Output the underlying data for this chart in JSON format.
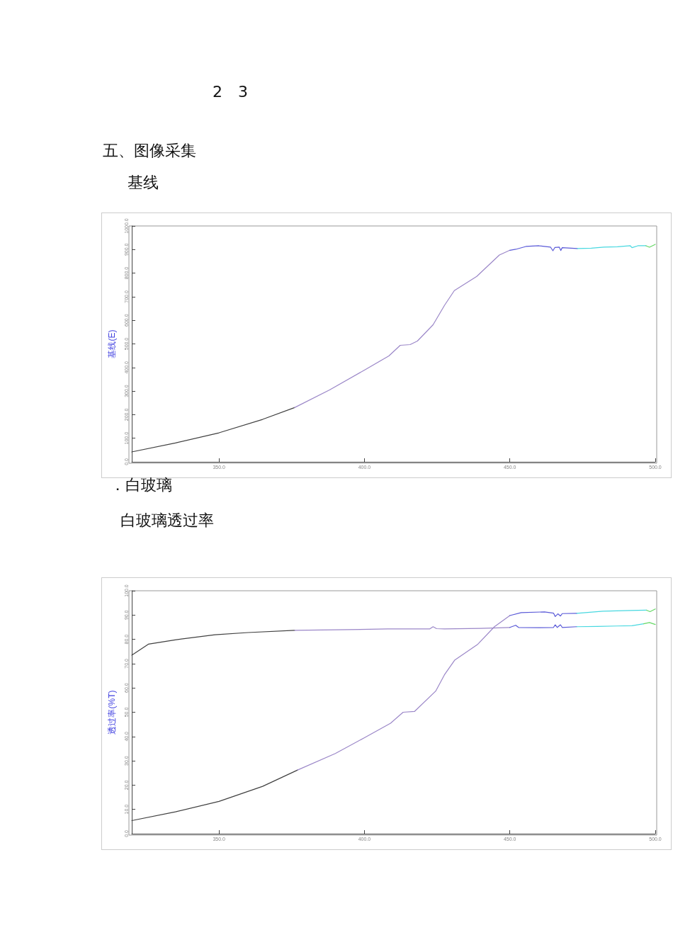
{
  "chart_data": [
    {
      "type": "line",
      "title": "基线",
      "annotations": [
        "2　3",
        "五、图像采集"
      ],
      "ylabel": "基线(E)",
      "xlim": [
        320,
        500
      ],
      "ylim": [
        0,
        1000
      ],
      "xticks": [
        {
          "value": 350,
          "label": "350.0"
        },
        {
          "value": 400,
          "label": "400.0"
        },
        {
          "value": 450,
          "label": "450.0"
        },
        {
          "value": 500,
          "label": "500.0"
        }
      ],
      "yticks": [
        {
          "value": 0,
          "label": "0.0"
        },
        {
          "value": 100,
          "label": "100.0"
        },
        {
          "value": 200,
          "label": "200.0"
        },
        {
          "value": 300,
          "label": "300.0"
        },
        {
          "value": 400,
          "label": "400.0"
        },
        {
          "value": 500,
          "label": "500.0"
        },
        {
          "value": 600,
          "label": "600.0"
        },
        {
          "value": 700,
          "label": "700.0"
        },
        {
          "value": 800,
          "label": "800.0"
        },
        {
          "value": 900,
          "label": "900.0"
        },
        {
          "value": 1000,
          "label": "1000.0"
        }
      ],
      "grid": false,
      "marker": "none",
      "line_style": "solid",
      "series": [
        {
          "color": "#404040",
          "x": [
            320,
            335,
            350,
            365,
            376
          ],
          "values": [
            42,
            80,
            123,
            180,
            230
          ]
        },
        {
          "color": "#9b87c8",
          "x": [
            376,
            388,
            400,
            408.4,
            412.3,
            415.7,
            418.2,
            423.6,
            427.5,
            430.9,
            438.6,
            446.4,
            450
          ],
          "values": [
            230,
            305,
            389,
            449,
            494,
            497,
            512,
            581,
            663,
            726,
            786,
            877,
            897
          ]
        },
        {
          "color": "#5a5ad8",
          "x": [
            450,
            452,
            455.5,
            460,
            464,
            464.8,
            465.5,
            467,
            467.5,
            468,
            473.2
          ],
          "values": [
            897,
            901,
            913,
            916,
            910,
            895,
            909,
            910,
            896,
            908,
            904
          ]
        },
        {
          "color": "#48d8e0",
          "x": [
            473.2,
            478,
            482.3,
            487,
            491.4,
            492,
            494,
            496.8
          ],
          "values": [
            904,
            906,
            910,
            912,
            916,
            908,
            916,
            916
          ]
        },
        {
          "color": "#66d866",
          "x": [
            496.8,
            498,
            500
          ],
          "values": [
            916,
            910,
            922
          ]
        }
      ]
    },
    {
      "type": "line",
      "title": "白玻璃透过率",
      "annotations": [
        "．白玻璃"
      ],
      "ylabel": "透过率(%T)",
      "xlim": [
        320,
        500
      ],
      "ylim": [
        0,
        100
      ],
      "xticks": [
        {
          "value": 350,
          "label": "350.0"
        },
        {
          "value": 400,
          "label": "400.0"
        },
        {
          "value": 450,
          "label": "450.0"
        },
        {
          "value": 500,
          "label": "500.0"
        }
      ],
      "yticks": [
        {
          "value": 0,
          "label": "0.0"
        },
        {
          "value": 10,
          "label": "10.0"
        },
        {
          "value": 20,
          "label": "20.0"
        },
        {
          "value": 30,
          "label": "30.0"
        },
        {
          "value": 40,
          "label": "40.0"
        },
        {
          "value": 50,
          "label": "50.0"
        },
        {
          "value": 60,
          "label": "60.0"
        },
        {
          "value": 70,
          "label": "70.0"
        },
        {
          "value": 80,
          "label": "80.0"
        },
        {
          "value": 90,
          "label": "90.0"
        },
        {
          "value": 100,
          "label": "100.0"
        }
      ],
      "grid": false,
      "marker": "none",
      "line_style": "solid",
      "series": [
        {
          "color": "#404040",
          "x": [
            320,
            335,
            350,
            365,
            377
          ],
          "values": [
            5.4,
            9,
            13.3,
            19.5,
            26.2
          ]
        },
        {
          "color": "#9b87c8",
          "x": [
            377,
            390,
            400,
            409,
            413.3,
            417.2,
            424.5,
            427.5,
            431,
            439,
            444.7,
            450
          ],
          "values": [
            26.2,
            33,
            39.5,
            45.5,
            50,
            50.3,
            58.7,
            65.4,
            71.4,
            78,
            85.2,
            89.8
          ]
        },
        {
          "color": "#5a5ad8",
          "x": [
            450,
            453.9,
            461.9,
            465,
            465.6,
            466.5,
            467.4,
            468,
            473
          ],
          "values": [
            89.8,
            91,
            91.3,
            90.8,
            89.4,
            90.5,
            89.6,
            90.6,
            90.7
          ]
        },
        {
          "color": "#48d8e0",
          "x": [
            473,
            482,
            491.3,
            497
          ],
          "values": [
            90.7,
            91.6,
            91.9,
            92
          ]
        },
        {
          "color": "#66d866",
          "x": [
            497,
            498.2,
            500
          ],
          "values": [
            92,
            91.4,
            92.5
          ]
        },
        {
          "color": "#404040",
          "x": [
            320,
            325.7,
            334.9,
            348.6,
            360,
            376
          ],
          "values": [
            73.5,
            78,
            79.8,
            81.9,
            82.8,
            83.7
          ]
        },
        {
          "color": "#9b87c8",
          "x": [
            376,
            394.4,
            408,
            422.5,
            423.6,
            424.8,
            427.5,
            440,
            450
          ],
          "values": [
            83.7,
            84,
            84.3,
            84.3,
            85.2,
            84.4,
            84.3,
            84.5,
            84.9
          ]
        },
        {
          "color": "#5a5ad8",
          "x": [
            450,
            452,
            453,
            460,
            465,
            465.6,
            466.3,
            467.4,
            468,
            473
          ],
          "values": [
            84.9,
            85.8,
            84.9,
            84.8,
            84.9,
            86,
            84.9,
            86,
            84.9,
            85.2
          ]
        },
        {
          "color": "#48d8e0",
          "x": [
            473,
            480,
            486.9,
            492,
            496
          ],
          "values": [
            85.2,
            85.3,
            85.5,
            85.6,
            86.4
          ]
        },
        {
          "color": "#66d866",
          "x": [
            496,
            498,
            500
          ],
          "values": [
            86.4,
            86.9,
            86.1
          ]
        }
      ]
    }
  ]
}
